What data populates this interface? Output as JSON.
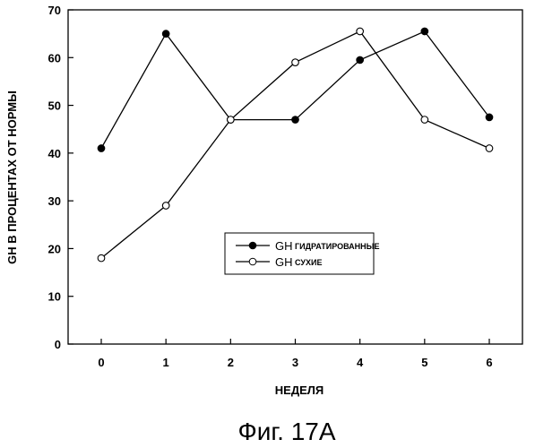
{
  "chart_data": {
    "type": "line",
    "x": [
      0,
      1,
      2,
      3,
      4,
      5,
      6
    ],
    "categories": [
      "0",
      "1",
      "2",
      "3",
      "4",
      "5",
      "6"
    ],
    "xlabel": "НЕДЕЛЯ",
    "ylabel": "GH В ПРОЦЕНТАХ ОТ НОРМЫ",
    "ylim": [
      0,
      70
    ],
    "yticks": [
      0,
      10,
      20,
      30,
      40,
      50,
      60,
      70
    ],
    "ytick_labels": [
      "0",
      "10",
      "20",
      "30",
      "40",
      "50",
      "60",
      "70"
    ],
    "grid": false,
    "legend_position": "center",
    "series": [
      {
        "name": "GH",
        "desc": "ГИДРАТИРОВАННЫЕ",
        "marker": "filled-circle",
        "values": [
          41,
          65,
          47,
          47,
          59.5,
          65.5,
          47.5
        ]
      },
      {
        "name": "GH",
        "desc": "СУХИЕ",
        "marker": "open-circle",
        "values": [
          18,
          29,
          47,
          59,
          65.5,
          47,
          41
        ]
      }
    ]
  },
  "caption": "Фиг. 17А"
}
